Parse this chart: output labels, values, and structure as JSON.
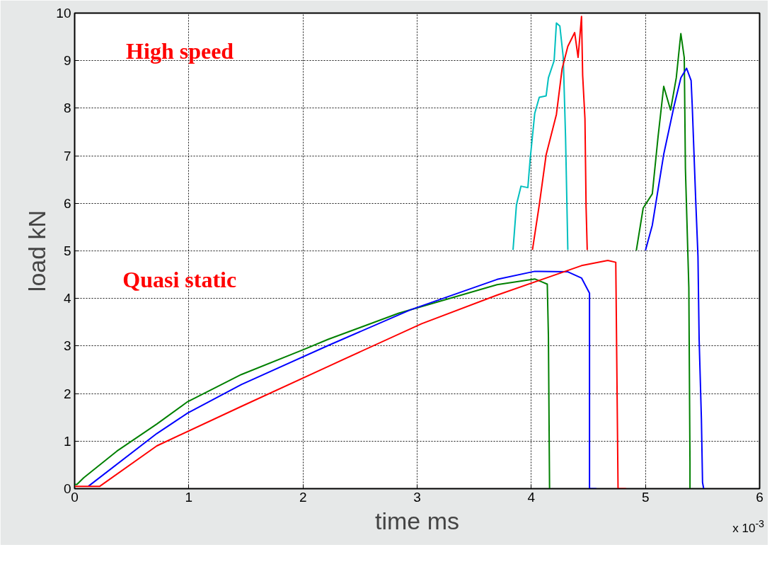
{
  "chart_data": {
    "type": "line",
    "xlabel": "time ms",
    "ylabel": "load kN",
    "xlim": [
      0,
      6
    ],
    "xticks": [
      0,
      1,
      2,
      3,
      4,
      5,
      6
    ],
    "ylim": [
      0,
      10
    ],
    "yticks": [
      0,
      1,
      2,
      3,
      4,
      5,
      6,
      7,
      8,
      9,
      10
    ],
    "grid": true,
    "annotations": [
      "High speed",
      "Quasi static",
      "x 10$^{-3}$"
    ],
    "series": [
      {
        "color": "#00bfbf",
        "x": [
          3.84,
          3.87,
          3.91,
          3.97,
          3.99,
          4.03,
          4.07,
          4.13,
          4.15,
          4.2,
          4.22,
          4.25,
          4.28,
          4.3,
          4.32
        ],
        "values": [
          5.02,
          5.97,
          6.36,
          6.33,
          6.93,
          7.89,
          8.23,
          8.26,
          8.64,
          9.0,
          9.79,
          9.73,
          9.07,
          7.4,
          5.02
        ]
      },
      {
        "color": "#ff0000",
        "x": [
          4.01,
          4.07,
          4.13,
          4.22,
          4.27,
          4.32,
          4.38,
          4.41,
          4.44,
          4.45,
          4.47,
          4.48,
          4.49
        ],
        "values": [
          5.02,
          5.97,
          7.02,
          7.87,
          8.83,
          9.3,
          9.59,
          9.07,
          9.93,
          8.69,
          7.78,
          5.92,
          5.02
        ]
      },
      {
        "color": "#008000",
        "x": [
          4.92,
          4.98,
          5.06,
          5.11,
          5.16,
          5.22,
          5.27,
          5.29,
          5.31,
          5.34,
          5.35,
          5.38,
          5.39,
          5.39
        ],
        "values": [
          5.01,
          5.9,
          6.2,
          7.39,
          8.46,
          7.96,
          8.64,
          9.11,
          9.57,
          9.06,
          6.73,
          4.23,
          0.54,
          0
        ]
      },
      {
        "color": "#0000ff",
        "x": [
          5.0,
          5.06,
          5.16,
          5.25,
          5.31,
          5.36,
          5.4,
          5.41,
          5.44,
          5.46,
          5.47,
          5.49,
          5.5,
          5.51
        ],
        "values": [
          5.01,
          5.54,
          7.03,
          8.04,
          8.64,
          8.84,
          8.58,
          8.04,
          6.08,
          4.89,
          3.16,
          1.47,
          0.13,
          0
        ]
      },
      {
        "color": "#008000",
        "x": [
          0,
          0.02,
          0.08,
          0.37,
          0.72,
          0.99,
          1.46,
          2.01,
          2.22,
          2.84,
          3.7,
          4.03,
          4.14,
          4.15,
          4.16
        ],
        "values": [
          0.09,
          0.09,
          0.23,
          0.79,
          1.36,
          1.83,
          2.4,
          2.93,
          3.14,
          3.69,
          4.29,
          4.41,
          4.3,
          3.2,
          0
        ]
      },
      {
        "color": "#0000ff",
        "x": [
          0.12,
          0.72,
          0.99,
          1.46,
          2.22,
          2.94,
          3.7,
          4.03,
          4.32,
          4.44,
          4.51,
          4.51,
          4.57
        ],
        "values": [
          0.05,
          1.16,
          1.59,
          2.19,
          3.01,
          3.76,
          4.4,
          4.57,
          4.56,
          4.43,
          4.11,
          0,
          0
        ]
      },
      {
        "color": "#ff0000",
        "x": [
          0,
          0.22,
          0.72,
          1.46,
          2.22,
          3.04,
          3.7,
          4.44,
          4.67,
          4.74,
          4.76,
          4.83
        ],
        "values": [
          0.05,
          0.05,
          0.9,
          1.73,
          2.57,
          3.47,
          4.07,
          4.69,
          4.8,
          4.76,
          0,
          0
        ]
      }
    ]
  }
}
